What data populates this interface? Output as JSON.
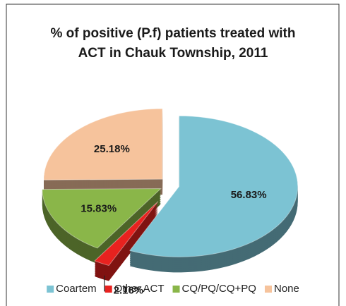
{
  "chart_data": {
    "type": "pie",
    "title": "% of positive (P.f) patients treated with ACT in Chauk Township, 2011",
    "categories": [
      "Coartem",
      "Other ACT",
      "CQ/PQ/CQ+PQ",
      "None"
    ],
    "values": [
      56.83,
      2.16,
      15.83,
      25.18
    ],
    "value_labels": [
      "56.83%",
      "2.16%",
      "15.83%",
      "25.18%"
    ],
    "colors": [
      "#7cc3d3",
      "#e8221f",
      "#8ab649",
      "#f6c39c"
    ],
    "legend": "bottom"
  }
}
